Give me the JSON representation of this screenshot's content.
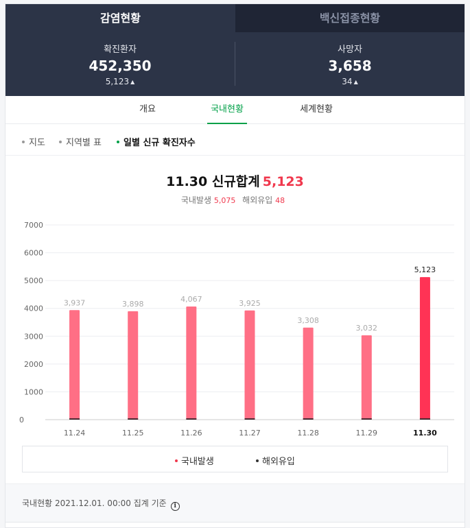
{
  "tabs": [
    {
      "label": "감염현황"
    },
    {
      "label": "백신접종현황"
    }
  ],
  "stats": {
    "confirmed": {
      "label": "확진환자",
      "value": "452,350",
      "delta": "5,123"
    },
    "deaths": {
      "label": "사망자",
      "value": "3,658",
      "delta": "34"
    }
  },
  "subtabs": [
    {
      "label": "개요"
    },
    {
      "label": "국내현황"
    },
    {
      "label": "세계현황"
    }
  ],
  "filters": [
    {
      "label": "지도"
    },
    {
      "label": "지역별 표"
    },
    {
      "label": "일별 신규 확진자수"
    }
  ],
  "summary": {
    "title": "11.30 신규합계",
    "total": "5,123",
    "domestic_label": "국내발생",
    "domestic_value": "5,075",
    "overseas_label": "해외유입",
    "overseas_value": "48"
  },
  "chart_data": {
    "type": "bar",
    "categories": [
      "11.24",
      "11.25",
      "11.26",
      "11.27",
      "11.28",
      "11.29",
      "11.30"
    ],
    "series": [
      {
        "name": "국내발생",
        "values": [
          3937,
          3898,
          4067,
          3925,
          3308,
          3032,
          5075
        ]
      },
      {
        "name": "해외유입",
        "values": [
          0,
          0,
          0,
          0,
          0,
          0,
          48
        ]
      }
    ],
    "totals": [
      3937,
      3898,
      4067,
      3925,
      3308,
      3032,
      5123
    ],
    "total_labels": [
      "3,937",
      "3,898",
      "4,067",
      "3,925",
      "3,308",
      "3,032",
      "5,123"
    ],
    "yticks": [
      0,
      1000,
      2000,
      3000,
      4000,
      5000,
      6000,
      7000
    ],
    "ylim": [
      0,
      7000
    ],
    "highlight_index": 6,
    "grid": true
  },
  "legend": [
    {
      "label": "국내발생",
      "color": "#f0384d"
    },
    {
      "label": "해외유입",
      "color": "#333333"
    }
  ],
  "colors": {
    "bar": "#ff6f85",
    "bar_highlight": "#ff3355",
    "accent_green": "#00a047",
    "header_bg": "#2c3447"
  },
  "footer": {
    "note": "국내현황 2021.12.01. 00:00 집계 기준"
  }
}
